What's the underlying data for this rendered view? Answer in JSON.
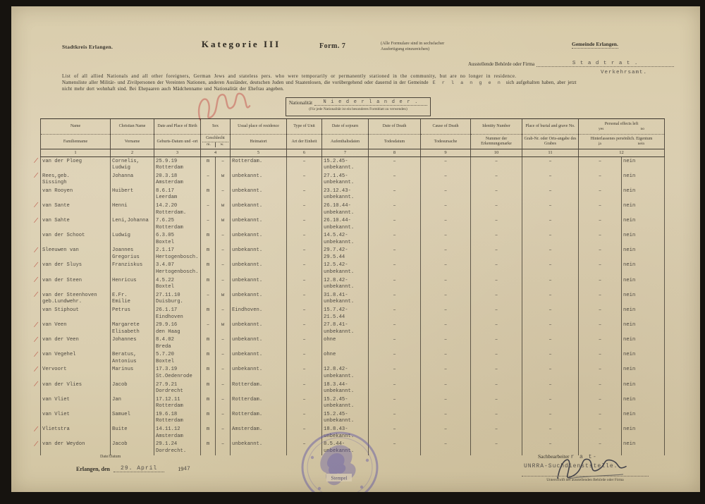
{
  "scan": {
    "district_label": "Stadtkreis Erlangen.",
    "category_title": "Kategorie III",
    "form_label": "Form. 7",
    "copies_note_line1": "(Alle Formulare sind in sechsfacher",
    "copies_note_line2": "Ausfertigung einzureichen)",
    "municipality_label": "Gemeinde Erlangen.",
    "issuing_label": "Ausstellende Behörde oder Firma",
    "issuing_value_typed": "S t a d t r a t .",
    "issuing_value_typed2": "Verkehrsamt.",
    "english_description": "List of all allied Nationals and all other foreigners, German Jews and stateless pers. who were temporarily or permanently stationed in the community, but are no longer in residence.",
    "german_description_line1_pre": "Namensliste aller Militär- und Zivilpersonen der Vereinten Nationen, anderen Ausländer, deutschen Juden und Staatenlosen, die vorübergehend oder dauernd in der Gemeinde",
    "german_description_typed_place": "E r l a n g e n",
    "german_description_line1_post": "sich aufgehalten haben, aber jetzt",
    "german_description_line2": "nicht mehr dort wohnhaft sind. Bei Ehepaaren auch Mädchenname und Nationalität der Ehefrau angeben.",
    "nationality_label": "Nationalität",
    "nationality_value": "N i e d e r l a n d e r .",
    "nationality_note": "(Für jede Nationalität ist ein besonderes Formblatt zu verwenden)"
  },
  "table": {
    "columns": [
      {
        "key": "name",
        "en": "Name",
        "de": "Familienname",
        "num": "1"
      },
      {
        "key": "vorname",
        "en": "Christian Name",
        "de": "Vorname",
        "num": "2"
      },
      {
        "key": "birth",
        "en": "Date and Place of Birth",
        "de": "Geburts-Datum und -ort",
        "num": "3"
      },
      {
        "key": "sex",
        "en": "Sex",
        "de": "Geschlecht",
        "sub_m": "m.",
        "sub_w": "w.",
        "num": "4"
      },
      {
        "key": "heimatort",
        "en": "Usual place of residence",
        "de": "Heimatort",
        "num": "5"
      },
      {
        "key": "unit",
        "en": "Type of Unit",
        "de": "Art der Einheit",
        "num": "6"
      },
      {
        "key": "sojourn",
        "en": "Date of sojourn",
        "de": "Aufenthaltsdaten",
        "num": "7"
      },
      {
        "key": "death_date",
        "en": "Date of Death",
        "de": "Todesdatum",
        "num": "8"
      },
      {
        "key": "death_cause",
        "en": "Cause of Death",
        "de": "Todesursache",
        "num": "9"
      },
      {
        "key": "identity",
        "en": "Identity Number",
        "de": "Nummer der Erkennungsmarke",
        "num": "10"
      },
      {
        "key": "grave",
        "en": "Place of burial and grave No.",
        "de": "Grab-Nr. oder Orts-angabe des Grabes",
        "num": "11"
      },
      {
        "key": "effects",
        "en": "Personal effects left",
        "en_sub_yes": "yes",
        "en_sub_no": "no",
        "de": "Hinterlassenes persönlich. Eigentum",
        "de_sub_ja": "ja",
        "de_sub_nein": "nein",
        "num": "12"
      }
    ],
    "rows": [
      {
        "check": true,
        "name": "van der Ploeg",
        "vorname": "Cornelis,\nLudwig",
        "birth": "25.9.19\nRotterdam",
        "m": "m",
        "w": "–",
        "heimatort": "Rotterdam.",
        "unit": "–",
        "sojourn": "15.2.45-\nunbekannt.",
        "death_date": "–",
        "death_cause": "–",
        "identity": "–",
        "grave": "–",
        "ja": "–",
        "nein": "nein"
      },
      {
        "check": true,
        "name": "Rees,geb.\nSissingh",
        "vorname": "Johanna",
        "birth": "20.3.18\nAmsterdam",
        "m": "–",
        "w": "w",
        "heimatort": "unbekannt.",
        "unit": "–",
        "sojourn": "27.1.45-\nunbekannt.",
        "death_date": "–",
        "death_cause": "–",
        "identity": "–",
        "grave": "–",
        "ja": "–",
        "nein": "nein"
      },
      {
        "check": false,
        "name": "van Rooyen",
        "vorname": "Huibert",
        "birth": "8.6.17\nLeerdam",
        "m": "m",
        "w": "–",
        "heimatort": "unbekannt.",
        "unit": "–",
        "sojourn": "23.12.43-\nunbekannt.",
        "death_date": "–",
        "death_cause": "–",
        "identity": "–",
        "grave": "–",
        "ja": "–",
        "nein": "nein"
      },
      {
        "check": true,
        "name": "van Sante",
        "vorname": "Henni",
        "birth": "14.2.20\nRotterdam.",
        "m": "–",
        "w": "w",
        "heimatort": "unbekannt.",
        "unit": "–",
        "sojourn": "26.10.44-\nunbekannt.",
        "death_date": "–",
        "death_cause": "–",
        "identity": "–",
        "grave": "–",
        "ja": "–",
        "nein": "nein"
      },
      {
        "check": true,
        "name": "van Sahte",
        "vorname": "Leni,Johanna",
        "birth": "7.6.25\nRotterdam",
        "m": "–",
        "w": "w",
        "heimatort": "unbekannt.",
        "unit": "–",
        "sojourn": "26.10.44-\nunbekannt.",
        "death_date": "–",
        "death_cause": "–",
        "identity": "–",
        "grave": "–",
        "ja": "–",
        "nein": "nein"
      },
      {
        "check": false,
        "name": "van der Schoot",
        "vorname": "Ludwig",
        "birth": "6.3.05\nBoxtel",
        "m": "m",
        "w": "–",
        "heimatort": "unbekannt.",
        "unit": "–",
        "sojourn": "14.5.42-\nunbekannt.",
        "death_date": "–",
        "death_cause": "–",
        "identity": "–",
        "grave": "–",
        "ja": "–",
        "nein": "nein"
      },
      {
        "check": true,
        "name": "Sleeuwen van",
        "vorname": "Joannes\nGregorius",
        "birth": "2.1.17\nHertogenbosch.",
        "m": "m",
        "w": "–",
        "heimatort": "unbekannt.",
        "unit": "–",
        "sojourn": "29.7.42-\n29.5.44",
        "death_date": "–",
        "death_cause": "–",
        "identity": "–",
        "grave": "–",
        "ja": "–",
        "nein": "nein"
      },
      {
        "check": true,
        "name": "van der Sluys",
        "vorname": "Franziskus",
        "birth": "3.4.07\nHertogenbosch.",
        "m": "m",
        "w": "–",
        "heimatort": "unbekannt.",
        "unit": "–",
        "sojourn": "12.5.42-\nunbekannt.",
        "death_date": "–",
        "death_cause": "–",
        "identity": "–",
        "grave": "–",
        "ja": "–",
        "nein": "nein"
      },
      {
        "check": true,
        "name": "van der Steen",
        "vorname": "Henricus",
        "birth": "4.5.22\nBoxtel",
        "m": "m",
        "w": "–",
        "heimatort": "unbekannt.",
        "unit": "–",
        "sojourn": "12.8.42-\nunbekannt.",
        "death_date": "–",
        "death_cause": "–",
        "identity": "–",
        "grave": "–",
        "ja": "–",
        "nein": "nein"
      },
      {
        "check": true,
        "name": "van der Steenhoven\ngeb.Lundwehr.",
        "vorname": "E.Fr.\nEmilie",
        "birth": "27.11.10\nDuisburg.",
        "m": "–",
        "w": "w",
        "heimatort": "unbekannt.",
        "unit": "–",
        "sojourn": "31.8.41-\nunbekannt.",
        "death_date": "–",
        "death_cause": "–",
        "identity": "–",
        "grave": "–",
        "ja": "–",
        "nein": "nein"
      },
      {
        "check": false,
        "name": "van Stiphout",
        "vorname": "Petrus",
        "birth": "26.1.17\nEindhoven",
        "m": "m",
        "w": "–",
        "heimatort": "Eindhoven.",
        "unit": "–",
        "sojourn": "15.7.42-\n21.5.44",
        "death_date": "–",
        "death_cause": "–",
        "identity": "–",
        "grave": "–",
        "ja": "–",
        "nein": "nein"
      },
      {
        "check": true,
        "name": "van Veen",
        "vorname": "Margarete\nElisabeth",
        "birth": "29.9.16\nden Haag",
        "m": "–",
        "w": "w",
        "heimatort": "unbekannt.",
        "unit": "–",
        "sojourn": "27.8.41-\nunbekannt.",
        "death_date": "–",
        "death_cause": "–",
        "identity": "–",
        "grave": "–",
        "ja": "–",
        "nein": "nein"
      },
      {
        "check": true,
        "name": "van der Veen",
        "vorname": "Johannes",
        "birth": "8.4.02\nBreda",
        "m": "m",
        "w": "–",
        "heimatort": "unbekannt.",
        "unit": "–",
        "sojourn": "ohne",
        "death_date": "–",
        "death_cause": "–",
        "identity": "–",
        "grave": "–",
        "ja": "–",
        "nein": "nein"
      },
      {
        "check": true,
        "name": "van Vegehel",
        "vorname": "Beratus,\nAntonius",
        "birth": "5.7.20\nBoxtel",
        "m": "m",
        "w": "–",
        "heimatort": "unbekannt.",
        "unit": "–",
        "sojourn": "ohne",
        "death_date": "–",
        "death_cause": "–",
        "identity": "–",
        "grave": "–",
        "ja": "–",
        "nein": "nein"
      },
      {
        "check": true,
        "name": "Vervoort",
        "vorname": "Marinus",
        "birth": "17.3.19\nSt.Oedenrode",
        "m": "m",
        "w": "–",
        "heimatort": "unbekannt.",
        "unit": "–",
        "sojourn": "12.8.42-\nunbekannt.",
        "death_date": "–",
        "death_cause": "–",
        "identity": "–",
        "grave": "–",
        "ja": "–",
        "nein": "nein"
      },
      {
        "check": true,
        "name": "van der Vlies",
        "vorname": "Jacob",
        "birth": "27.9.21\nDordrecht",
        "m": "m",
        "w": "–",
        "heimatort": "Rotterdam.",
        "unit": "–",
        "sojourn": "18.3.44-\nunbekannt.",
        "death_date": "–",
        "death_cause": "–",
        "identity": "–",
        "grave": "–",
        "ja": "–",
        "nein": "nein"
      },
      {
        "check": false,
        "name": "van Vliet",
        "vorname": "Jan",
        "birth": "17.12.11\nRotterdam",
        "m": "m",
        "w": "–",
        "heimatort": "Rotterdam.",
        "unit": "–",
        "sojourn": "15.2.45-\nunbekannt.",
        "death_date": "–",
        "death_cause": "–",
        "identity": "–",
        "grave": "–",
        "ja": "–",
        "nein": "nein"
      },
      {
        "check": false,
        "name": "van Vliet",
        "vorname": "Samuel",
        "birth": "19.6.18\nRotterdam",
        "m": "m",
        "w": "–",
        "heimatort": "Rotterdam.",
        "unit": "–",
        "sojourn": "15.2.45-\nunbekannt.",
        "death_date": "–",
        "death_cause": "–",
        "identity": "–",
        "grave": "–",
        "ja": "–",
        "nein": "nein"
      },
      {
        "check": true,
        "name": "Vlietstra",
        "vorname": "Buite",
        "birth": "14.11.12\nAmsterdam",
        "m": "m",
        "w": "–",
        "heimatort": "Amsterdam.",
        "unit": "–",
        "sojourn": "18.8.43-\nunbekannt.",
        "death_date": "–",
        "death_cause": "–",
        "identity": "–",
        "grave": "–",
        "ja": "–",
        "nein": "nein"
      },
      {
        "check": true,
        "name": "van der Weydon",
        "vorname": "Jacob",
        "birth": "29.1.24\nDordrecht.",
        "m": "m",
        "w": "–",
        "heimatort": "unbekannt.",
        "unit": "–",
        "sojourn": "8.5.44-\nunbekannt.",
        "death_date": "–",
        "death_cause": "–",
        "identity": "–",
        "grave": "–",
        "ja": "–",
        "nein": "nein"
      }
    ]
  },
  "footer": {
    "date_label": "Date/Datum",
    "date_place_printed": "Erlangen, den",
    "date_typed": "29. April",
    "year_printed": "19",
    "year_typed": "47",
    "clerk_printed": "Sachbearbeiter",
    "clerk_typed": "r a t-",
    "office_typed": "UNRRA-Suchdienststelle.",
    "signature_caption": "Unterschrift der ausstellenden Behörde oder Firma",
    "stamp_text": "Stempel"
  }
}
